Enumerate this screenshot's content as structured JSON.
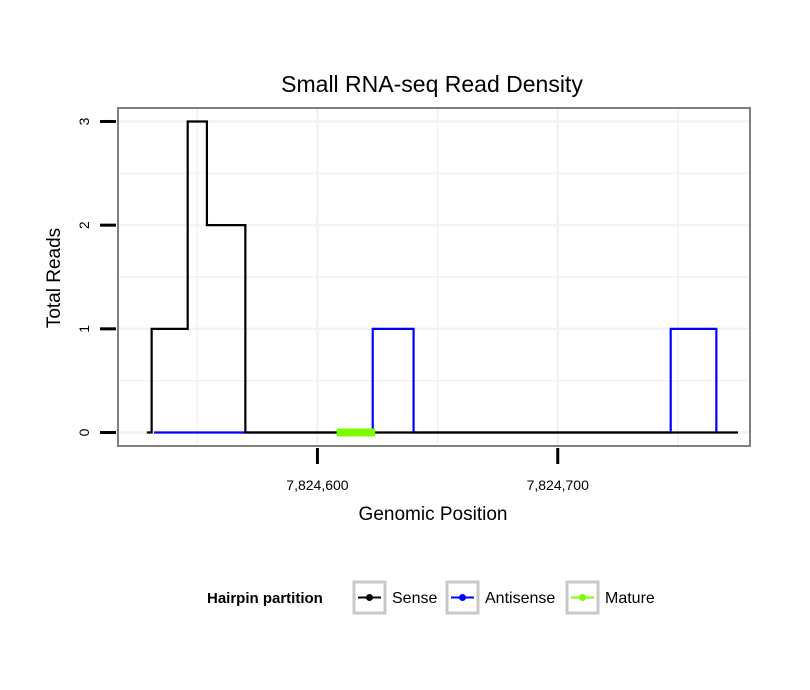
{
  "chart_data": {
    "type": "line",
    "title": "Small RNA-seq Read Density",
    "xlabel": "Genomic Position",
    "ylabel": "Total Reads",
    "xlim": [
      7824517,
      7824780
    ],
    "ylim": [
      -0.13,
      3.13
    ],
    "x_ticks": [
      {
        "value": 7824600,
        "label": "7,824,600"
      },
      {
        "value": 7824700,
        "label": "7,824,700"
      }
    ],
    "y_ticks": [
      {
        "value": 0,
        "label": "0"
      },
      {
        "value": 1,
        "label": "1"
      },
      {
        "value": 2,
        "label": "2"
      },
      {
        "value": 3,
        "label": "3"
      }
    ],
    "grid": true,
    "legend": {
      "title": "Hairpin partition",
      "position": "bottom",
      "entries": [
        "Sense",
        "Antisense",
        "Mature"
      ]
    },
    "series": [
      {
        "name": "Sense",
        "color": "#000000",
        "x": [
          7824529,
          7824531,
          7824531,
          7824546,
          7824546,
          7824554,
          7824554,
          7824570,
          7824570,
          7824588,
          7824606,
          7824624,
          7824642,
          7824660,
          7824680,
          7824700,
          7824720,
          7824740,
          7824760,
          7824775
        ],
        "y": [
          0,
          0,
          1,
          1,
          3,
          3,
          2,
          2,
          0,
          0,
          0,
          0,
          0,
          0,
          0,
          0,
          0,
          0,
          0,
          0
        ]
      },
      {
        "name": "Antisense",
        "color": "#0000ff",
        "x": [
          7824532,
          7824560,
          7824600,
          7824622,
          7824623,
          7824623,
          7824640,
          7824640,
          7824660,
          7824700,
          7824746,
          7824747,
          7824747,
          7824766,
          7824766
        ],
        "y": [
          0,
          0,
          0,
          0,
          0,
          1,
          1,
          0,
          0,
          0,
          0,
          0,
          1,
          1,
          0
        ]
      },
      {
        "name": "Mature",
        "color": "#7cfc00",
        "x": [
          7824608,
          7824624
        ],
        "y": [
          0,
          0
        ]
      }
    ]
  }
}
